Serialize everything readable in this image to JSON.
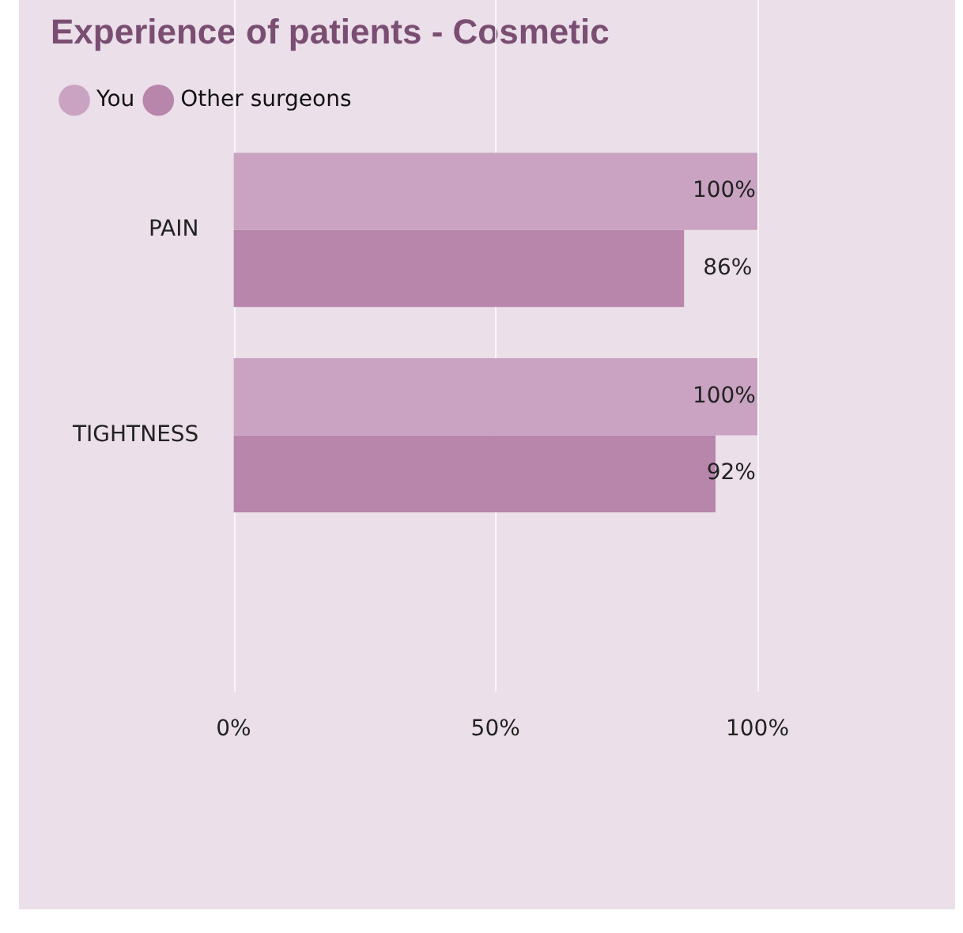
{
  "chart_data": {
    "type": "bar",
    "orientation": "horizontal",
    "title": "Experience of patients - Cosmetic",
    "categories": [
      "PAIN",
      "TIGHTNESS"
    ],
    "series": [
      {
        "name": "You",
        "color": "#c9a3c1",
        "values": [
          100,
          100
        ],
        "value_labels": [
          "100%",
          "100%"
        ]
      },
      {
        "name": "Other surgeons",
        "color": "#b885ab",
        "values": [
          86,
          92
        ],
        "value_labels": [
          "86%",
          "92%"
        ]
      }
    ],
    "xlim": [
      0,
      100
    ],
    "xticks": [
      {
        "value": 0,
        "label": "0%"
      },
      {
        "value": 50,
        "label": "50%"
      },
      {
        "value": 100,
        "label": "100%"
      }
    ],
    "grid": "x",
    "legend": "top left"
  }
}
